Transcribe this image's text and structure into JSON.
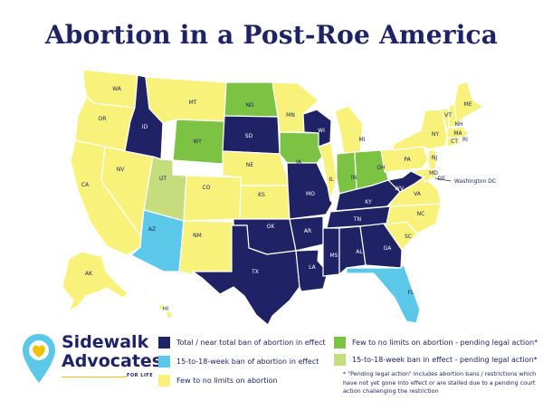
{
  "title": "Abortion in a Post-Roe America",
  "colors": {
    "total_ban": "#1f2366",
    "week_ban": "#5bc8ea",
    "few_limits": "#f8f27a",
    "few_limits_pending": "#7cc243",
    "week_ban_pending": "#c5dd7c",
    "label_light": "#1f2366",
    "label_dark": "#ffffff"
  },
  "map": {
    "states": [
      {
        "code": "WA",
        "category": "few_limits"
      },
      {
        "code": "OR",
        "category": "few_limits"
      },
      {
        "code": "CA",
        "category": "few_limits"
      },
      {
        "code": "NV",
        "category": "few_limits"
      },
      {
        "code": "ID",
        "category": "total_ban"
      },
      {
        "code": "MT",
        "category": "few_limits"
      },
      {
        "code": "WY",
        "category": "few_limits_pending"
      },
      {
        "code": "UT",
        "category": "week_ban_pending"
      },
      {
        "code": "AZ",
        "category": "week_ban"
      },
      {
        "code": "CO",
        "category": "few_limits"
      },
      {
        "code": "NM",
        "category": "few_limits"
      },
      {
        "code": "ND",
        "category": "few_limits_pending"
      },
      {
        "code": "SD",
        "category": "total_ban"
      },
      {
        "code": "NE",
        "category": "few_limits"
      },
      {
        "code": "KS",
        "category": "few_limits"
      },
      {
        "code": "OK",
        "category": "total_ban"
      },
      {
        "code": "TX",
        "category": "total_ban"
      },
      {
        "code": "MN",
        "category": "few_limits"
      },
      {
        "code": "IA",
        "category": "few_limits_pending"
      },
      {
        "code": "MO",
        "category": "total_ban"
      },
      {
        "code": "AR",
        "category": "total_ban"
      },
      {
        "code": "LA",
        "category": "total_ban"
      },
      {
        "code": "WI",
        "category": "total_ban"
      },
      {
        "code": "IL",
        "category": "few_limits"
      },
      {
        "code": "MI",
        "category": "few_limits"
      },
      {
        "code": "IN",
        "category": "few_limits_pending"
      },
      {
        "code": "OH",
        "category": "few_limits_pending"
      },
      {
        "code": "KY",
        "category": "total_ban"
      },
      {
        "code": "TN",
        "category": "total_ban"
      },
      {
        "code": "MS",
        "category": "total_ban"
      },
      {
        "code": "AL",
        "category": "total_ban"
      },
      {
        "code": "GA",
        "category": "total_ban"
      },
      {
        "code": "FL",
        "category": "week_ban"
      },
      {
        "code": "SC",
        "category": "few_limits"
      },
      {
        "code": "NC",
        "category": "few_limits"
      },
      {
        "code": "VA",
        "category": "few_limits"
      },
      {
        "code": "WV",
        "category": "total_ban"
      },
      {
        "code": "PA",
        "category": "few_limits"
      },
      {
        "code": "NY",
        "category": "few_limits"
      },
      {
        "code": "VT",
        "category": "few_limits"
      },
      {
        "code": "NH",
        "category": "few_limits"
      },
      {
        "code": "ME",
        "category": "few_limits"
      },
      {
        "code": "MA",
        "category": "few_limits"
      },
      {
        "code": "CT",
        "category": "few_limits"
      },
      {
        "code": "RI",
        "category": "few_limits"
      },
      {
        "code": "NJ",
        "category": "few_limits"
      },
      {
        "code": "DE",
        "category": "few_limits"
      },
      {
        "code": "MD",
        "category": "few_limits"
      },
      {
        "code": "AK",
        "category": "few_limits"
      },
      {
        "code": "HI",
        "category": "few_limits"
      }
    ],
    "dc_label": "Washington DC"
  },
  "legend": [
    {
      "category": "total_ban",
      "label": "Total / near total ban of abortion in effect"
    },
    {
      "category": "week_ban",
      "label": "15-to-18-week ban of abortion in effect"
    },
    {
      "category": "few_limits",
      "label": "Few to no limits on abortion"
    },
    {
      "category": "few_limits_pending",
      "label": "Few to no limits on abortion - pending legal action*"
    },
    {
      "category": "week_ban_pending",
      "label": "15-to-18-week ban in effect - pending legal action*"
    }
  ],
  "footnote": "* \"Pending legal action\" includes abortion bans / restrictions which have not yet gone into effect or are stalled due to a pending court action challenging the restriction",
  "logo": {
    "line1": "Sidewalk",
    "line2": "Advocates",
    "sub": "FOR LIFE",
    "colors": {
      "pin": "#5bc8ea",
      "heart": "#f0c20e",
      "text": "#1f2366"
    }
  }
}
